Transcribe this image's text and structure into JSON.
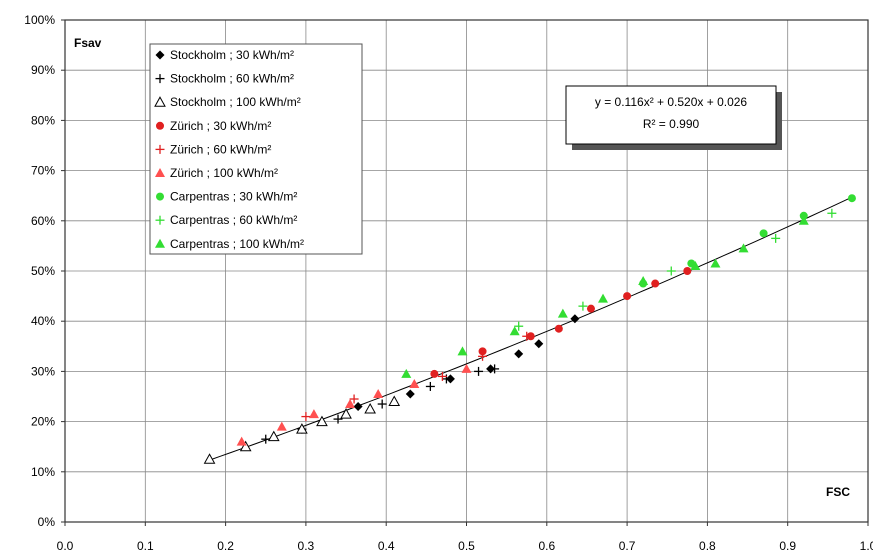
{
  "chart_data": {
    "type": "scatter",
    "xlabel": "FSC",
    "ylabel": "Fsav",
    "xlim": [
      0.0,
      1.0
    ],
    "ylim": [
      0.0,
      1.0
    ],
    "x_ticks": [
      "0.0",
      "0.1",
      "0.2",
      "0.3",
      "0.4",
      "0.5",
      "0.6",
      "0.7",
      "0.8",
      "0.9",
      "1.0"
    ],
    "y_ticks": [
      "0%",
      "10%",
      "20%",
      "30%",
      "40%",
      "50%",
      "60%",
      "70%",
      "80%",
      "90%",
      "100%"
    ],
    "grid": true,
    "legend_position": "top-left",
    "trendline": {
      "a": 0.116,
      "b": 0.52,
      "c": 0.026,
      "x_range": [
        0.18,
        0.98
      ],
      "equation_label": "y = 0.116x² + 0.520x + 0.026",
      "r2_label": "R² = 0.990"
    },
    "series": [
      {
        "name": "Stockholm ; 30 kWh/m²",
        "marker": "diamond",
        "color": "#000000",
        "x": [
          0.365,
          0.43,
          0.48,
          0.53,
          0.565,
          0.59,
          0.635
        ],
        "y": [
          0.23,
          0.255,
          0.285,
          0.305,
          0.335,
          0.355,
          0.405
        ]
      },
      {
        "name": "Stockholm ; 60 kWh/m²",
        "marker": "plus",
        "color": "#000000",
        "x": [
          0.25,
          0.295,
          0.34,
          0.395,
          0.455,
          0.475,
          0.515,
          0.535
        ],
        "y": [
          0.165,
          0.185,
          0.205,
          0.235,
          0.27,
          0.285,
          0.3,
          0.305
        ]
      },
      {
        "name": "Stockholm ; 100 kWh/m²",
        "marker": "triangle-open",
        "color": "#000000",
        "x": [
          0.18,
          0.225,
          0.26,
          0.295,
          0.32,
          0.35,
          0.38,
          0.41
        ],
        "y": [
          0.125,
          0.15,
          0.17,
          0.185,
          0.2,
          0.215,
          0.225,
          0.24
        ]
      },
      {
        "name": "Zürich ; 30 kWh/m²",
        "marker": "circle",
        "color": "#e02020",
        "x": [
          0.46,
          0.52,
          0.58,
          0.615,
          0.655,
          0.7,
          0.735,
          0.775
        ],
        "y": [
          0.295,
          0.34,
          0.37,
          0.385,
          0.425,
          0.45,
          0.475,
          0.5
        ]
      },
      {
        "name": "Zürich ; 60 kWh/m²",
        "marker": "plus",
        "color": "#e02020",
        "x": [
          0.3,
          0.36,
          0.47,
          0.52,
          0.575
        ],
        "y": [
          0.21,
          0.245,
          0.29,
          0.33,
          0.37
        ]
      },
      {
        "name": "Zürich ; 100 kWh/m²",
        "marker": "triangle",
        "color": "#ff5050",
        "x": [
          0.22,
          0.27,
          0.31,
          0.355,
          0.39,
          0.435,
          0.5
        ],
        "y": [
          0.16,
          0.19,
          0.215,
          0.235,
          0.255,
          0.275,
          0.305
        ]
      },
      {
        "name": "Carpentras ; 30 kWh/m²",
        "marker": "circle",
        "color": "#33dd33",
        "x": [
          0.72,
          0.78,
          0.87,
          0.92,
          0.98
        ],
        "y": [
          0.475,
          0.515,
          0.575,
          0.61,
          0.645
        ]
      },
      {
        "name": "Carpentras ; 60 kWh/m²",
        "marker": "plus",
        "color": "#33dd33",
        "x": [
          0.565,
          0.645,
          0.755,
          0.885,
          0.955
        ],
        "y": [
          0.39,
          0.43,
          0.5,
          0.565,
          0.615
        ]
      },
      {
        "name": "Carpentras ; 100 kWh/m²",
        "marker": "triangle",
        "color": "#33dd33",
        "x": [
          0.425,
          0.495,
          0.56,
          0.62,
          0.67,
          0.72,
          0.785,
          0.81,
          0.845,
          0.92
        ],
        "y": [
          0.295,
          0.34,
          0.38,
          0.415,
          0.445,
          0.48,
          0.51,
          0.515,
          0.545,
          0.6
        ]
      }
    ]
  }
}
